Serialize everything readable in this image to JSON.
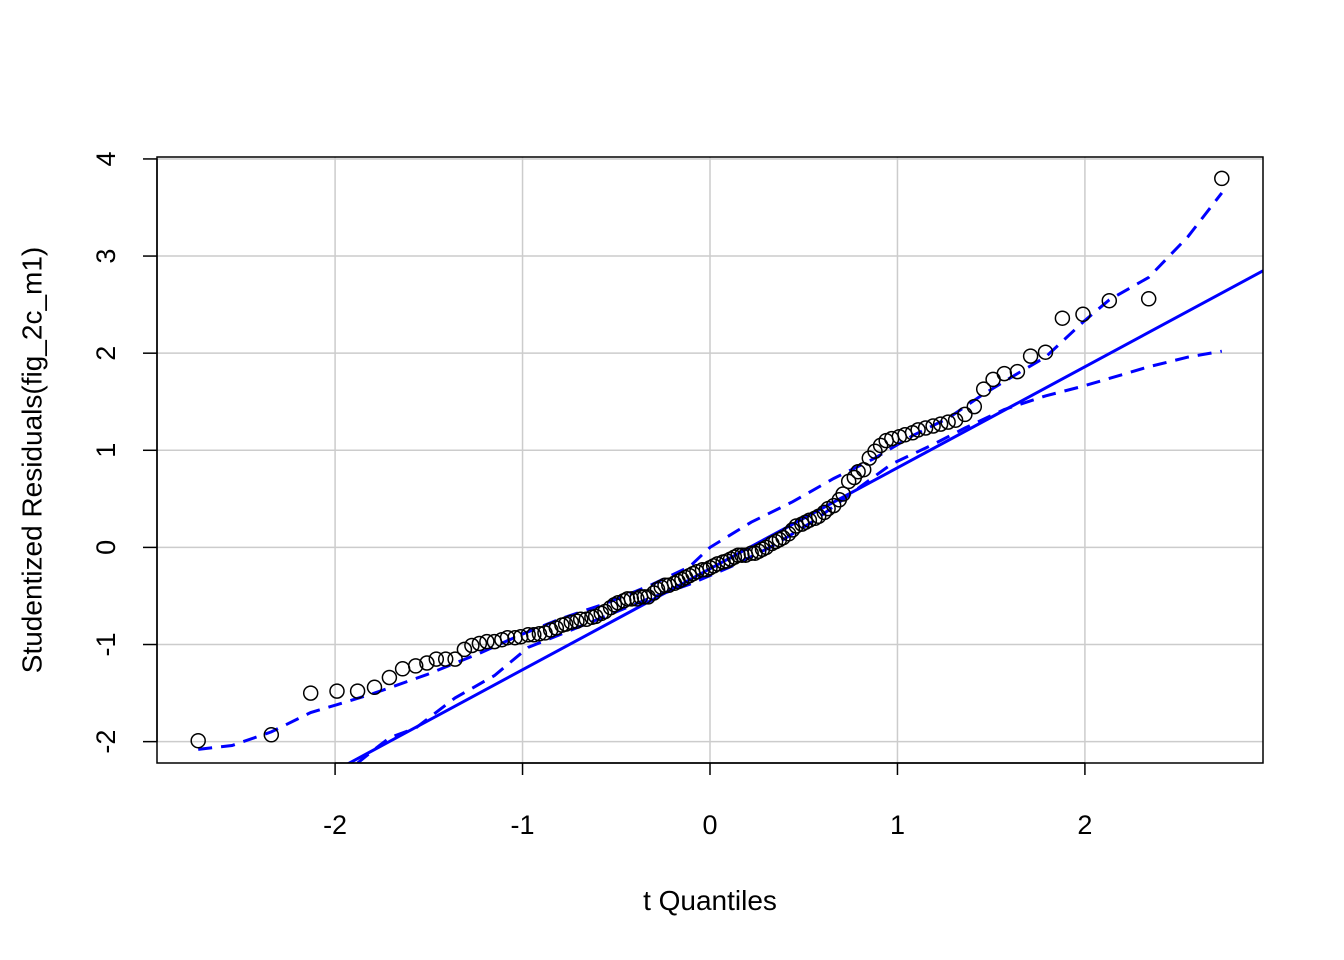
{
  "chart_data": {
    "type": "scatter",
    "title": "",
    "xlabel": "t Quantiles",
    "ylabel": "Studentized Residuals(fig_2c_m1)",
    "xlim": [
      -2.95,
      2.95
    ],
    "ylim": [
      -2.22,
      4.02
    ],
    "x_ticks": [
      -2,
      -1,
      0,
      1,
      2
    ],
    "y_ticks": [
      -2,
      -1,
      0,
      1,
      2,
      3,
      4
    ],
    "x_tick_labels": [
      "-2",
      "-1",
      "0",
      "1",
      "2"
    ],
    "y_tick_labels": [
      "-2",
      "-1",
      "0",
      "1",
      "2",
      "3",
      "4"
    ],
    "grid": true,
    "colors": {
      "points": "#000000",
      "reference_line": "#0000ff",
      "envelope": "#0000ff",
      "grid": "#cccccc"
    },
    "points": [
      [
        -2.73,
        -1.99
      ],
      [
        -2.34,
        -1.93
      ],
      [
        -2.13,
        -1.5
      ],
      [
        -1.99,
        -1.48
      ],
      [
        -1.88,
        -1.48
      ],
      [
        -1.79,
        -1.44
      ],
      [
        -1.71,
        -1.34
      ],
      [
        -1.64,
        -1.25
      ],
      [
        -1.57,
        -1.22
      ],
      [
        -1.51,
        -1.19
      ],
      [
        -1.46,
        -1.15
      ],
      [
        -1.41,
        -1.15
      ],
      [
        -1.36,
        -1.15
      ],
      [
        -1.31,
        -1.05
      ],
      [
        -1.27,
        -1.01
      ],
      [
        -1.23,
        -0.99
      ],
      [
        -1.19,
        -0.97
      ],
      [
        -1.15,
        -0.97
      ],
      [
        -1.11,
        -0.95
      ],
      [
        -1.08,
        -0.93
      ],
      [
        -1.04,
        -0.93
      ],
      [
        -1.01,
        -0.92
      ],
      [
        -0.97,
        -0.9
      ],
      [
        -0.94,
        -0.9
      ],
      [
        -0.91,
        -0.89
      ],
      [
        -0.88,
        -0.88
      ],
      [
        -0.85,
        -0.85
      ],
      [
        -0.82,
        -0.83
      ],
      [
        -0.79,
        -0.8
      ],
      [
        -0.77,
        -0.79
      ],
      [
        -0.74,
        -0.77
      ],
      [
        -0.71,
        -0.76
      ],
      [
        -0.69,
        -0.74
      ],
      [
        -0.66,
        -0.74
      ],
      [
        -0.63,
        -0.72
      ],
      [
        -0.61,
        -0.71
      ],
      [
        -0.58,
        -0.68
      ],
      [
        -0.56,
        -0.66
      ],
      [
        -0.53,
        -0.62
      ],
      [
        -0.51,
        -0.59
      ],
      [
        -0.49,
        -0.57
      ],
      [
        -0.46,
        -0.55
      ],
      [
        -0.44,
        -0.53
      ],
      [
        -0.42,
        -0.53
      ],
      [
        -0.39,
        -0.53
      ],
      [
        -0.37,
        -0.51
      ],
      [
        -0.35,
        -0.51
      ],
      [
        -0.33,
        -0.51
      ],
      [
        -0.3,
        -0.47
      ],
      [
        -0.28,
        -0.43
      ],
      [
        -0.26,
        -0.41
      ],
      [
        -0.24,
        -0.39
      ],
      [
        -0.22,
        -0.39
      ],
      [
        -0.19,
        -0.37
      ],
      [
        -0.17,
        -0.35
      ],
      [
        -0.15,
        -0.33
      ],
      [
        -0.13,
        -0.31
      ],
      [
        -0.11,
        -0.29
      ],
      [
        -0.09,
        -0.27
      ],
      [
        -0.07,
        -0.25
      ],
      [
        -0.04,
        -0.23
      ],
      [
        -0.02,
        -0.23
      ],
      [
        0.0,
        -0.21
      ],
      [
        0.02,
        -0.19
      ],
      [
        0.04,
        -0.17
      ],
      [
        0.07,
        -0.15
      ],
      [
        0.09,
        -0.14
      ],
      [
        0.11,
        -0.12
      ],
      [
        0.13,
        -0.1
      ],
      [
        0.15,
        -0.08
      ],
      [
        0.17,
        -0.08
      ],
      [
        0.19,
        -0.08
      ],
      [
        0.22,
        -0.06
      ],
      [
        0.24,
        -0.06
      ],
      [
        0.26,
        -0.04
      ],
      [
        0.28,
        -0.02
      ],
      [
        0.3,
        0.0
      ],
      [
        0.33,
        0.04
      ],
      [
        0.35,
        0.06
      ],
      [
        0.37,
        0.08
      ],
      [
        0.39,
        0.1
      ],
      [
        0.42,
        0.14
      ],
      [
        0.44,
        0.18
      ],
      [
        0.46,
        0.22
      ],
      [
        0.49,
        0.24
      ],
      [
        0.51,
        0.26
      ],
      [
        0.53,
        0.28
      ],
      [
        0.56,
        0.3
      ],
      [
        0.58,
        0.32
      ],
      [
        0.61,
        0.36
      ],
      [
        0.63,
        0.4
      ],
      [
        0.66,
        0.43
      ],
      [
        0.69,
        0.49
      ],
      [
        0.71,
        0.55
      ],
      [
        0.74,
        0.68
      ],
      [
        0.77,
        0.72
      ],
      [
        0.79,
        0.78
      ],
      [
        0.82,
        0.8
      ],
      [
        0.85,
        0.92
      ],
      [
        0.88,
        0.99
      ],
      [
        0.91,
        1.05
      ],
      [
        0.94,
        1.1
      ],
      [
        0.97,
        1.12
      ],
      [
        1.01,
        1.14
      ],
      [
        1.04,
        1.16
      ],
      [
        1.08,
        1.18
      ],
      [
        1.11,
        1.21
      ],
      [
        1.15,
        1.23
      ],
      [
        1.19,
        1.25
      ],
      [
        1.23,
        1.27
      ],
      [
        1.27,
        1.29
      ],
      [
        1.31,
        1.31
      ],
      [
        1.36,
        1.37
      ],
      [
        1.41,
        1.45
      ],
      [
        1.46,
        1.63
      ],
      [
        1.51,
        1.73
      ],
      [
        1.57,
        1.79
      ],
      [
        1.64,
        1.81
      ],
      [
        1.71,
        1.97
      ],
      [
        1.79,
        2.01
      ],
      [
        1.88,
        2.36
      ],
      [
        1.99,
        2.4
      ],
      [
        2.13,
        2.54
      ],
      [
        2.34,
        2.56
      ],
      [
        2.73,
        3.8
      ]
    ],
    "reference_line": {
      "intercept": -0.22,
      "slope": 1.04
    },
    "upper_envelope": [
      [
        -2.73,
        -2.08
      ],
      [
        -2.55,
        -2.04
      ],
      [
        -2.34,
        -1.9
      ],
      [
        -2.13,
        -1.7
      ],
      [
        -1.99,
        -1.62
      ],
      [
        -1.79,
        -1.5
      ],
      [
        -1.51,
        -1.31
      ],
      [
        -1.23,
        -1.09
      ],
      [
        -1.01,
        -0.9
      ],
      [
        -0.79,
        -0.73
      ],
      [
        -0.56,
        -0.58
      ],
      [
        -0.33,
        -0.4
      ],
      [
        -0.11,
        -0.2
      ],
      [
        0.0,
        0.0
      ],
      [
        0.22,
        0.26
      ],
      [
        0.44,
        0.47
      ],
      [
        0.66,
        0.71
      ],
      [
        0.88,
        0.92
      ],
      [
        1.08,
        1.15
      ],
      [
        1.27,
        1.33
      ],
      [
        1.46,
        1.58
      ],
      [
        1.64,
        1.79
      ],
      [
        1.79,
        1.96
      ],
      [
        1.99,
        2.32
      ],
      [
        2.13,
        2.55
      ],
      [
        2.34,
        2.78
      ],
      [
        2.55,
        3.2
      ],
      [
        2.73,
        3.65
      ]
    ],
    "lower_envelope": [
      [
        -1.88,
        -2.22
      ],
      [
        -1.79,
        -2.08
      ],
      [
        -1.71,
        -1.96
      ],
      [
        -1.57,
        -1.86
      ],
      [
        -1.36,
        -1.55
      ],
      [
        -1.15,
        -1.32
      ],
      [
        -0.97,
        -1.03
      ],
      [
        -0.79,
        -0.89
      ],
      [
        -0.56,
        -0.71
      ],
      [
        -0.33,
        -0.53
      ],
      [
        -0.11,
        -0.38
      ],
      [
        0.11,
        -0.2
      ],
      [
        0.33,
        0.01
      ],
      [
        0.56,
        0.28
      ],
      [
        0.77,
        0.58
      ],
      [
        0.97,
        0.86
      ],
      [
        1.19,
        1.06
      ],
      [
        1.36,
        1.23
      ],
      [
        1.57,
        1.42
      ],
      [
        1.79,
        1.56
      ],
      [
        1.99,
        1.66
      ],
      [
        2.34,
        1.86
      ],
      [
        2.55,
        1.96
      ],
      [
        2.73,
        2.02
      ]
    ]
  }
}
